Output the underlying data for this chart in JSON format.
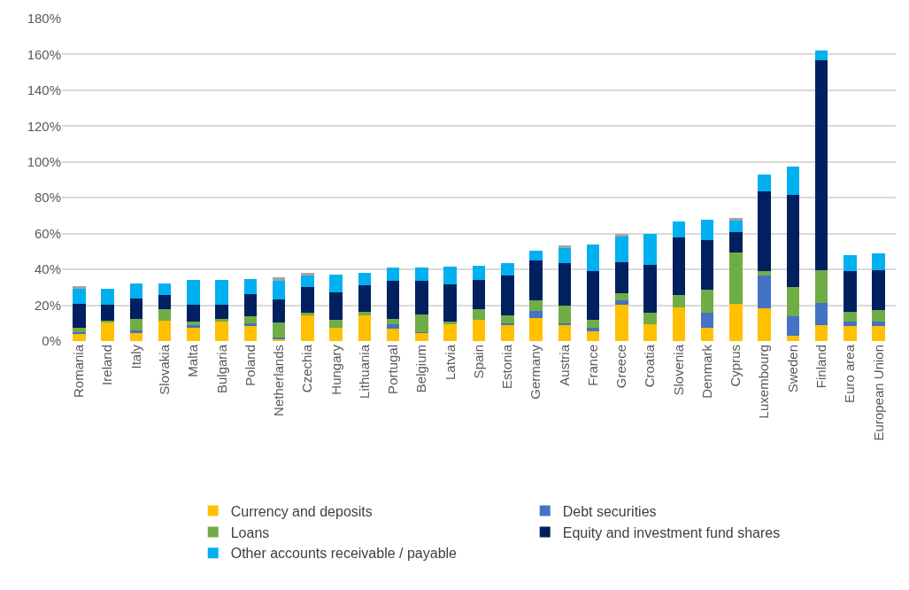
{
  "chart_data": {
    "type": "bar",
    "stacked": true,
    "grid": "y",
    "legend": "bottom",
    "categories": [
      "Romania",
      "Ireland",
      "Italy",
      "Slovakia",
      "Malta",
      "Bulgaria",
      "Poland",
      "Netherlands",
      "Czechia",
      "Hungary",
      "Lithuania",
      "Portugal",
      "Belgium",
      "Latvia",
      "Spain",
      "Estonia",
      "Germany",
      "Austria",
      "France",
      "Greece",
      "Croatia",
      "Slovenia",
      "Denmark",
      "Cyprus",
      "Luxembourg",
      "Sweden",
      "Finland",
      "Euro area",
      "European Union"
    ],
    "ylim": [
      0,
      180
    ],
    "yticks": [
      {
        "value": 0,
        "label": "0%"
      },
      {
        "value": 20,
        "label": "20%"
      },
      {
        "value": 40,
        "label": "40%"
      },
      {
        "value": 60,
        "label": "60%"
      },
      {
        "value": 80,
        "label": "80%"
      },
      {
        "value": 100,
        "label": "100%"
      },
      {
        "value": 120,
        "label": "120%"
      },
      {
        "value": 140,
        "label": "140%"
      },
      {
        "value": 160,
        "label": "160%"
      },
      {
        "value": 180,
        "label": "180%"
      }
    ],
    "series": [
      {
        "name": "Currency and deposits",
        "color": "#ffc000",
        "values": [
          4.3,
          10.3,
          4.8,
          11.3,
          7.9,
          10.7,
          8.5,
          0.8,
          14.1,
          7.5,
          14.1,
          7.0,
          4.8,
          9.3,
          12.0,
          8.7,
          13.0,
          9.2,
          5.4,
          20.5,
          9.5,
          18.9,
          7.4,
          21.0,
          18.4,
          3.0,
          9.0,
          8.5,
          8.5
        ]
      },
      {
        "name": "Debt securities",
        "color": "#4472c4",
        "values": [
          0.7,
          0,
          0.9,
          0,
          0.8,
          0,
          1.5,
          1.0,
          0,
          0,
          0,
          2.5,
          0.3,
          0,
          null,
          1.3,
          3.9,
          0.8,
          2.0,
          2.1,
          0,
          0,
          8.2,
          0,
          18.2,
          10.9,
          12.5,
          2.6,
          2.6
        ]
      },
      {
        "name": "Loans",
        "color": "#70ad47",
        "values": [
          2.5,
          1.2,
          6.8,
          6.4,
          2.1,
          1.6,
          3.9,
          8.4,
          1.6,
          4.5,
          2.1,
          2.8,
          9.5,
          1.5,
          6.0,
          4.1,
          5.9,
          9.7,
          4.4,
          4.0,
          6.1,
          6.8,
          13.1,
          28.5,
          2.4,
          16.4,
          18.0,
          5.3,
          6.1
        ]
      },
      {
        "name": "Equity and investment fund shares",
        "color": "#002060",
        "values": [
          13.5,
          9.0,
          11.3,
          7.9,
          9.7,
          8.2,
          12.1,
          13.2,
          14.3,
          15.2,
          14.9,
          21.5,
          19.2,
          20.8,
          15.9,
          22.5,
          22.4,
          23.9,
          27.1,
          17.5,
          26.9,
          32.2,
          27.9,
          11.2,
          44.8,
          51.2,
          117.1,
          22.5,
          22.5
        ]
      },
      {
        "name": "Other accounts receivable / payable",
        "color": "#00b0f0",
        "values": [
          8.0,
          8.5,
          8.2,
          6.4,
          13.8,
          13.8,
          8.8,
          10.2,
          6.7,
          9.8,
          7.1,
          7.2,
          7.2,
          9.9,
          8.2,
          7.0,
          5.0,
          8.2,
          14.9,
          14.1,
          17.5,
          8.7,
          11.1,
          6.5,
          9.2,
          15.7,
          5.4,
          9.0,
          9.2
        ]
      },
      {
        "color": "#a5a5a5",
        "values": [
          1.5,
          0,
          0,
          0,
          0,
          0,
          0,
          1.8,
          1.5,
          0,
          0,
          0,
          0,
          0,
          0,
          0,
          0,
          1.6,
          0,
          1.6,
          0,
          0,
          0,
          1.5,
          0,
          0,
          0,
          0,
          0
        ]
      }
    ]
  }
}
